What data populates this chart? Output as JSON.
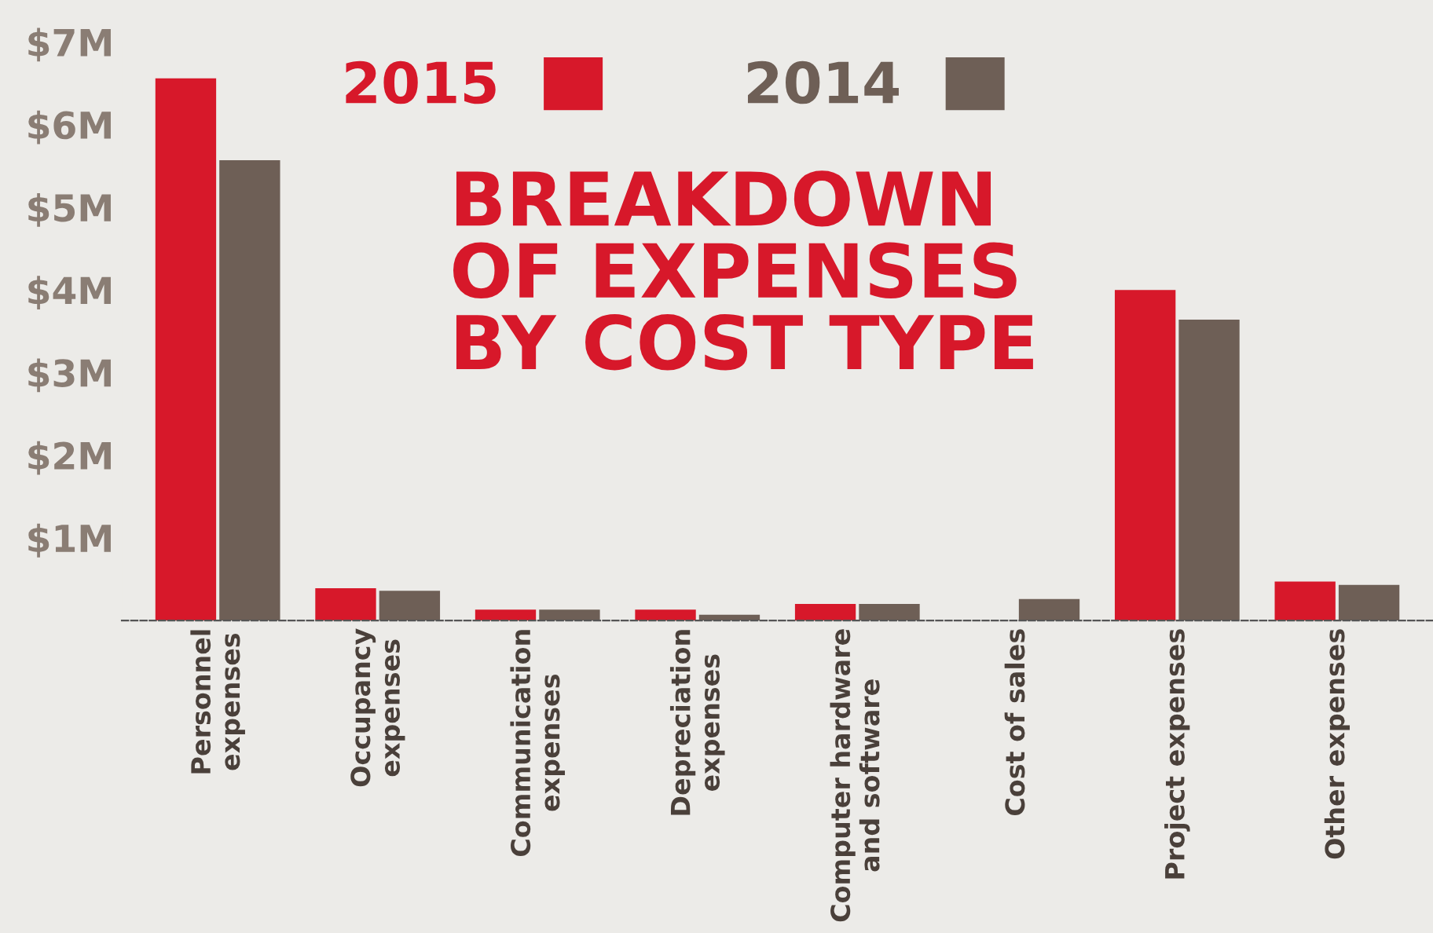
{
  "chart_data": {
    "type": "bar",
    "title": "BREAKDOWN\nOF EXPENSES\nBY COST TYPE",
    "categories": [
      "Personnel\nexpenses",
      "Occupancy\nexpenses",
      "Communication\nexpenses",
      "Depreciation\nexpenses",
      "Computer hardware\nand software",
      "Cost of sales",
      "Project expenses",
      "Other expenses"
    ],
    "series": [
      {
        "name": "2015",
        "color": "#d7182a",
        "values": [
          6.56,
          0.39,
          0.13,
          0.13,
          0.2,
          0,
          4.0,
          0.47
        ]
      },
      {
        "name": "2014",
        "color": "#6e5f56",
        "values": [
          5.57,
          0.36,
          0.13,
          0.07,
          0.2,
          0.26,
          3.64,
          0.43
        ]
      }
    ],
    "ylim": [
      0,
      7
    ],
    "yticks": [
      {
        "value": 1,
        "label": "$1M"
      },
      {
        "value": 2,
        "label": "$2M"
      },
      {
        "value": 3,
        "label": "$3M"
      },
      {
        "value": 4,
        "label": "$4M"
      },
      {
        "value": 5,
        "label": "$5M"
      },
      {
        "value": 6,
        "label": "$6M"
      },
      {
        "value": 7,
        "label": "$7M"
      }
    ],
    "grid": false,
    "legend": "top"
  }
}
